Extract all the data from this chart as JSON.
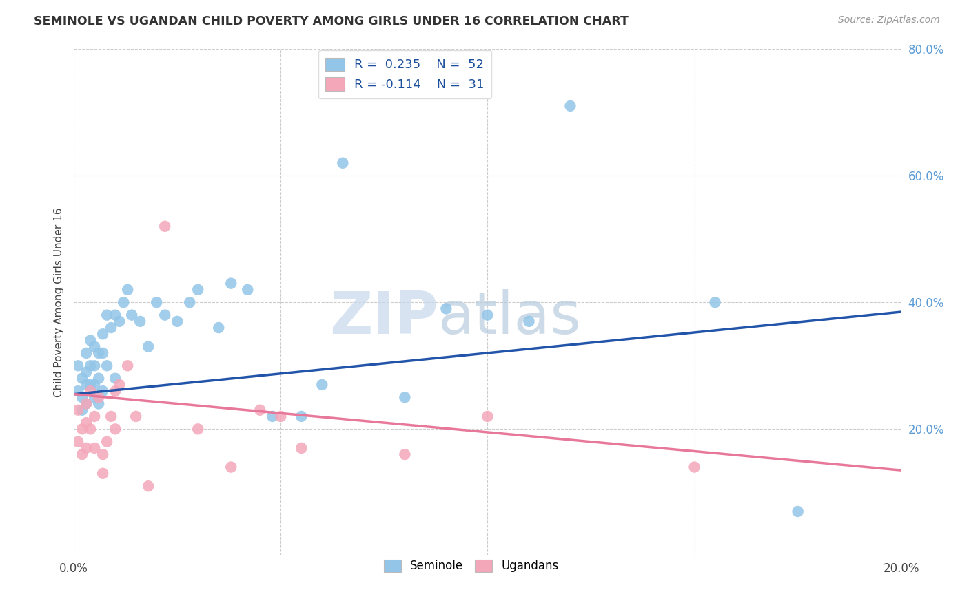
{
  "title": "SEMINOLE VS UGANDAN CHILD POVERTY AMONG GIRLS UNDER 16 CORRELATION CHART",
  "source": "Source: ZipAtlas.com",
  "ylabel": "Child Poverty Among Girls Under 16",
  "xlim": [
    0.0,
    0.2
  ],
  "ylim": [
    0.0,
    0.8
  ],
  "xticks": [
    0.0,
    0.05,
    0.1,
    0.15,
    0.2
  ],
  "xtick_labels": [
    "0.0%",
    "",
    "",
    "",
    "20.0%"
  ],
  "yticks": [
    0.0,
    0.2,
    0.4,
    0.6,
    0.8
  ],
  "ytick_labels": [
    "",
    "20.0%",
    "40.0%",
    "60.0%",
    "80.0%"
  ],
  "seminole_R": 0.235,
  "seminole_N": 52,
  "ugandan_R": -0.114,
  "ugandan_N": 31,
  "seminole_color": "#92C5E8",
  "ugandan_color": "#F4A7B9",
  "seminole_line_color": "#2255AA",
  "ugandan_line_color": "#E8789A",
  "watermark_zip": "ZIP",
  "watermark_atlas": "atlas",
  "background_color": "#FFFFFF",
  "grid_color": "#CCCCCC",
  "seminole_x": [
    0.001,
    0.001,
    0.002,
    0.002,
    0.002,
    0.003,
    0.003,
    0.003,
    0.003,
    0.004,
    0.004,
    0.004,
    0.005,
    0.005,
    0.005,
    0.005,
    0.006,
    0.006,
    0.006,
    0.007,
    0.007,
    0.007,
    0.008,
    0.008,
    0.009,
    0.01,
    0.01,
    0.011,
    0.012,
    0.013,
    0.014,
    0.016,
    0.018,
    0.02,
    0.022,
    0.025,
    0.028,
    0.03,
    0.035,
    0.038,
    0.042,
    0.048,
    0.055,
    0.06,
    0.065,
    0.08,
    0.09,
    0.1,
    0.11,
    0.12,
    0.155,
    0.175
  ],
  "seminole_y": [
    0.3,
    0.26,
    0.28,
    0.25,
    0.23,
    0.32,
    0.29,
    0.27,
    0.24,
    0.34,
    0.3,
    0.27,
    0.33,
    0.3,
    0.27,
    0.25,
    0.32,
    0.28,
    0.24,
    0.35,
    0.32,
    0.26,
    0.38,
    0.3,
    0.36,
    0.38,
    0.28,
    0.37,
    0.4,
    0.42,
    0.38,
    0.37,
    0.33,
    0.4,
    0.38,
    0.37,
    0.4,
    0.42,
    0.36,
    0.43,
    0.42,
    0.22,
    0.22,
    0.27,
    0.62,
    0.25,
    0.39,
    0.38,
    0.37,
    0.71,
    0.4,
    0.07
  ],
  "ugandan_x": [
    0.001,
    0.001,
    0.002,
    0.002,
    0.003,
    0.003,
    0.003,
    0.004,
    0.004,
    0.005,
    0.005,
    0.006,
    0.007,
    0.007,
    0.008,
    0.009,
    0.01,
    0.01,
    0.011,
    0.013,
    0.015,
    0.018,
    0.022,
    0.03,
    0.038,
    0.045,
    0.05,
    0.055,
    0.08,
    0.1,
    0.15
  ],
  "ugandan_y": [
    0.23,
    0.18,
    0.2,
    0.16,
    0.24,
    0.21,
    0.17,
    0.26,
    0.2,
    0.22,
    0.17,
    0.25,
    0.16,
    0.13,
    0.18,
    0.22,
    0.26,
    0.2,
    0.27,
    0.3,
    0.22,
    0.11,
    0.52,
    0.2,
    0.14,
    0.23,
    0.22,
    0.17,
    0.16,
    0.22,
    0.14
  ],
  "blue_trend_x0": 0.0,
  "blue_trend_y0": 0.255,
  "blue_trend_x1": 0.2,
  "blue_trend_y1": 0.385,
  "pink_trend_x0": 0.0,
  "pink_trend_y0": 0.255,
  "pink_trend_x1": 0.2,
  "pink_trend_y1": 0.135
}
